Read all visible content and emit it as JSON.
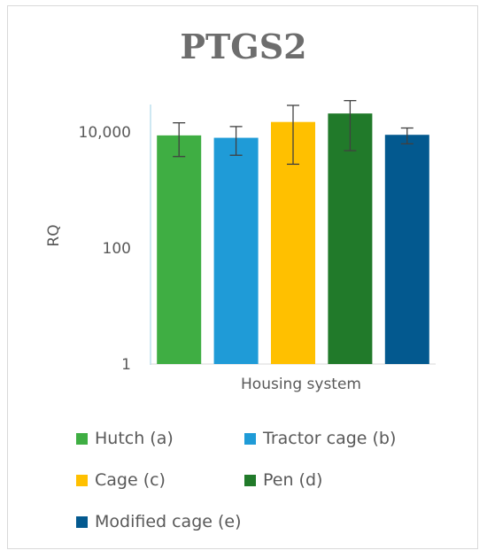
{
  "chart_data": {
    "type": "bar",
    "title": "PTGS2",
    "xlabel": "Housing system",
    "ylabel": "RQ",
    "yscale": "log",
    "ylim": [
      1,
      30000
    ],
    "yticks": [
      1,
      100,
      10000
    ],
    "ytick_labels": [
      "1",
      "100",
      "10,000"
    ],
    "grid": false,
    "legend_position": "bottom",
    "categories": [
      "Hutch (a)",
      "Tractor cage (b)",
      "Cage (c)",
      "Pen (d)",
      "Modified cage (e)"
    ],
    "values": [
      8800,
      8000,
      15000,
      21000,
      9000
    ],
    "error_low": [
      3800,
      4000,
      2800,
      4800,
      6300
    ],
    "error_high": [
      14500,
      12500,
      29000,
      35000,
      11800
    ],
    "colors": [
      "#3fae43",
      "#1f9bd7",
      "#ffc000",
      "#217a2a",
      "#03598f"
    ]
  }
}
